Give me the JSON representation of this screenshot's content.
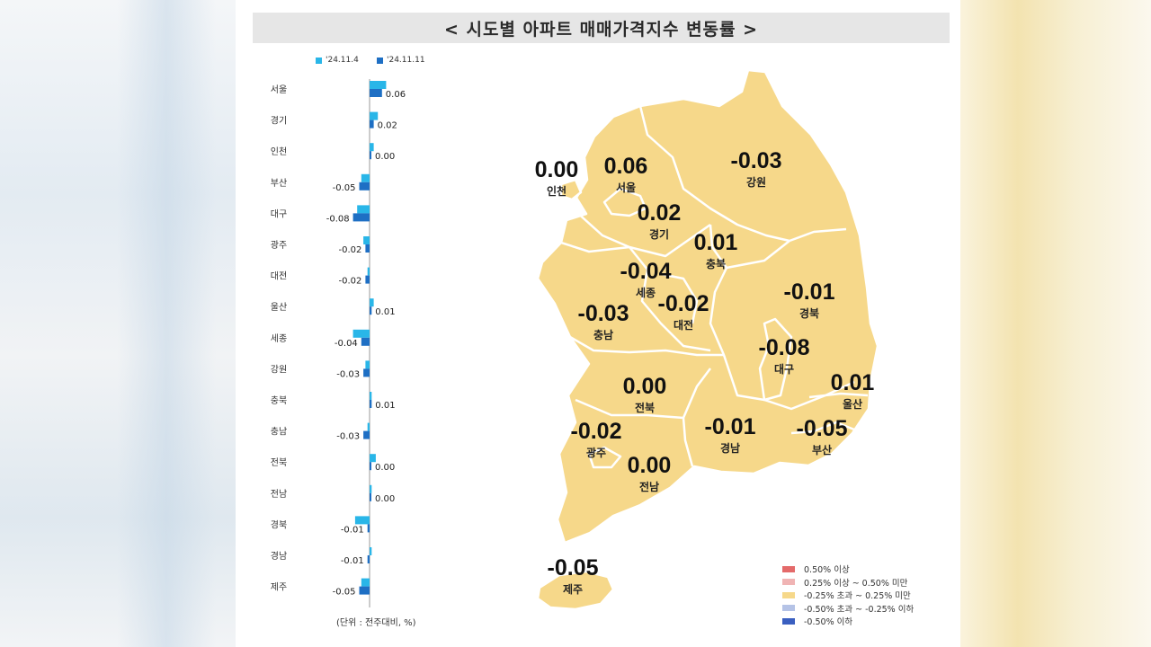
{
  "title": "< 시도별 아파트 매매가격지수 변동률 >",
  "chart_data": {
    "type": "bar",
    "orientation": "horizontal",
    "unit": "(단위 : 전주대비, %)",
    "categories": [
      "서울",
      "경기",
      "인천",
      "부산",
      "대구",
      "광주",
      "대전",
      "울산",
      "세종",
      "강원",
      "충북",
      "충남",
      "전북",
      "전남",
      "경북",
      "경남",
      "제주"
    ],
    "series": [
      {
        "name": "'24.11.4",
        "color": "#29b6e8",
        "values": [
          0.08,
          0.04,
          0.02,
          -0.04,
          -0.06,
          -0.03,
          -0.01,
          0.02,
          -0.08,
          -0.02,
          0.01,
          -0.01,
          0.03,
          0.01,
          -0.07,
          0.01,
          -0.04
        ]
      },
      {
        "name": "'24.11.11",
        "color": "#1e6fc4",
        "values": [
          0.06,
          0.02,
          0.0,
          -0.05,
          -0.08,
          -0.02,
          -0.02,
          0.01,
          -0.04,
          -0.03,
          0.01,
          -0.03,
          0.0,
          0.0,
          -0.01,
          -0.01,
          -0.05
        ]
      }
    ],
    "data_labels": [
      "0.06",
      "0.02",
      "0.00",
      "-0.05",
      "-0.08",
      "-0.02",
      "-0.02",
      "0.01",
      "-0.04",
      "-0.03",
      "0.01",
      "-0.03",
      "0.00",
      "0.00",
      "-0.01",
      "-0.01",
      "-0.05"
    ],
    "map_labels": [
      {
        "region": "인천",
        "value": "0.00"
      },
      {
        "region": "서울",
        "value": "0.06"
      },
      {
        "region": "강원",
        "value": "-0.03"
      },
      {
        "region": "경기",
        "value": "0.02"
      },
      {
        "region": "충북",
        "value": "0.01"
      },
      {
        "region": "세종",
        "value": "-0.04"
      },
      {
        "region": "대전",
        "value": "-0.02"
      },
      {
        "region": "충남",
        "value": "-0.03"
      },
      {
        "region": "경북",
        "value": "-0.01"
      },
      {
        "region": "대구",
        "value": "-0.08"
      },
      {
        "region": "울산",
        "value": "0.01"
      },
      {
        "region": "전북",
        "value": "0.00"
      },
      {
        "region": "광주",
        "value": "-0.02"
      },
      {
        "region": "경남",
        "value": "-0.01"
      },
      {
        "region": "부산",
        "value": "-0.05"
      },
      {
        "region": "전남",
        "value": "0.00"
      },
      {
        "region": "제주",
        "value": "-0.05"
      }
    ],
    "map_legend": [
      {
        "label": "0.50% 이상",
        "color": "#e46a6a"
      },
      {
        "label": "0.25% 이상 ~ 0.50% 미만",
        "color": "#f0b4b4"
      },
      {
        "label": "-0.25% 초과 ~ 0.25% 미만",
        "color": "#f6d88a"
      },
      {
        "label": "-0.50% 초과 ~ -0.25% 이하",
        "color": "#b5c3e6"
      },
      {
        "label": "-0.50% 이하",
        "color": "#3a5fc0"
      }
    ],
    "map_fill": "#f6d88a"
  }
}
